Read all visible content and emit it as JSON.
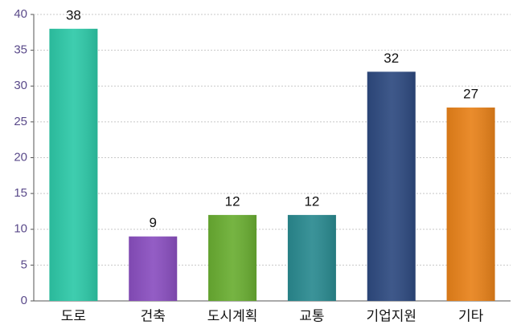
{
  "chart_data": {
    "type": "bar",
    "categories": [
      "도로",
      "건축",
      "도시계획",
      "교통",
      "기업지원",
      "기타"
    ],
    "values": [
      38,
      9,
      12,
      12,
      32,
      27
    ],
    "colors": [
      "#2ec9a8",
      "#8a4fc0",
      "#6aae32",
      "#2a8a90",
      "#2e4a80",
      "#e8821a"
    ],
    "ylim": [
      0,
      40
    ],
    "yticks": [
      0,
      5,
      10,
      15,
      20,
      25,
      30,
      35,
      40
    ],
    "grid": true
  }
}
